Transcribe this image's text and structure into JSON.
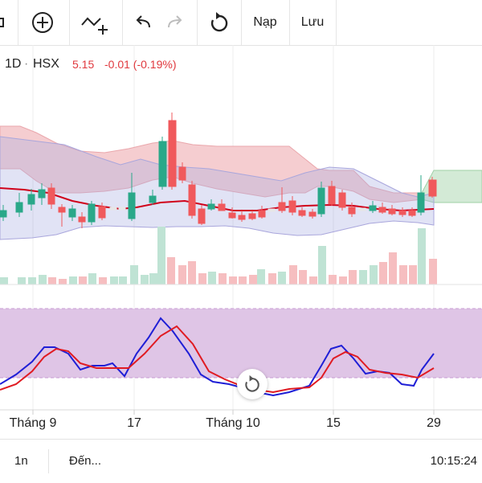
{
  "toolbar": {
    "buttons": [
      {
        "name": "indicator-settings-icon"
      },
      {
        "name": "add-icon"
      },
      {
        "name": "compare-icon"
      },
      {
        "name": "undo-icon"
      },
      {
        "name": "redo-icon"
      },
      {
        "name": "reset-icon"
      }
    ],
    "load_label": "Nạp",
    "save_label": "Lưu"
  },
  "info": {
    "timeframe": "1D",
    "separator": "·",
    "exchange": "HSX",
    "price": "5.15",
    "change": "-0.01 (-0.19%)"
  },
  "colors": {
    "up": "#26a69a",
    "down": "#ef5350",
    "ichimoku_red": "#f5c9cc",
    "ichimoku_green": "#cfe8d3",
    "bollinger_fill": "#dcdff2",
    "oscillator_bg": "#dcc1e3",
    "stoch_k": "#1f1fd6",
    "stoch_d": "#e01b22",
    "ma": "#d0021b"
  },
  "x_axis_labels": [
    "Tháng 9",
    "17",
    "Tháng 10",
    "15",
    "29"
  ],
  "bottom_bar": {
    "range": "1n",
    "goto": "Đến...",
    "time": "10:15:24"
  },
  "reset_icon": "reset-icon"
}
